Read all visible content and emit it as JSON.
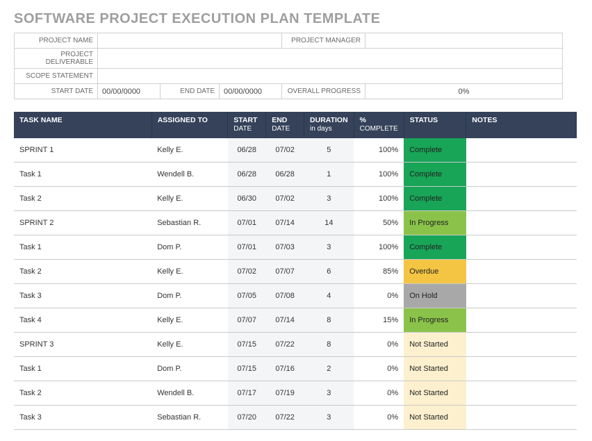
{
  "title": "SOFTWARE PROJECT EXECUTION PLAN TEMPLATE",
  "meta": {
    "project_name_label": "PROJECT NAME",
    "project_name": "",
    "project_manager_label": "PROJECT MANAGER",
    "project_manager": "",
    "deliverable_label": "PROJECT DELIVERABLE",
    "deliverable": "",
    "scope_label": "SCOPE STATEMENT",
    "scope": "",
    "start_date_label": "START DATE",
    "start_date": "00/00/0000",
    "end_date_label": "END DATE",
    "end_date": "00/00/0000",
    "overall_progress_label": "OVERALL PROGRESS",
    "overall_progress": "0%"
  },
  "columns": {
    "task_name": "TASK NAME",
    "assigned": "ASSIGNED TO",
    "start": "START",
    "start_sub": "DATE",
    "end": "END",
    "end_sub": "DATE",
    "duration": "DURATION",
    "duration_sub": "in days",
    "pct": "%",
    "pct_sub": "COMPLETE",
    "status": "STATUS",
    "notes": "NOTES"
  },
  "status_colors": {
    "Complete": "#18a558",
    "In Progress": "#8bc34a",
    "Overdue": "#f4c542",
    "On Hold": "#a8a8a8",
    "Not Started": "#fdf0cf"
  },
  "rows": [
    {
      "task": "SPRINT 1",
      "assigned": "Kelly E.",
      "start": "06/28",
      "end": "07/02",
      "duration": "5",
      "pct": "100%",
      "status": "Complete",
      "notes": ""
    },
    {
      "task": "Task 1",
      "assigned": "Wendell B.",
      "start": "06/28",
      "end": "06/28",
      "duration": "1",
      "pct": "100%",
      "status": "Complete",
      "notes": ""
    },
    {
      "task": "Task 2",
      "assigned": "Kelly E.",
      "start": "06/30",
      "end": "07/02",
      "duration": "3",
      "pct": "100%",
      "status": "Complete",
      "notes": ""
    },
    {
      "task": "SPRINT 2",
      "assigned": "Sebastian R.",
      "start": "07/01",
      "end": "07/14",
      "duration": "14",
      "pct": "50%",
      "status": "In Progress",
      "notes": ""
    },
    {
      "task": "Task 1",
      "assigned": "Dom P.",
      "start": "07/01",
      "end": "07/03",
      "duration": "3",
      "pct": "100%",
      "status": "Complete",
      "notes": ""
    },
    {
      "task": "Task 2",
      "assigned": "Kelly E.",
      "start": "07/02",
      "end": "07/07",
      "duration": "6",
      "pct": "85%",
      "status": "Overdue",
      "notes": ""
    },
    {
      "task": "Task 3",
      "assigned": "Dom P.",
      "start": "07/05",
      "end": "07/08",
      "duration": "4",
      "pct": "0%",
      "status": "On Hold",
      "notes": ""
    },
    {
      "task": "Task 4",
      "assigned": "Kelly E.",
      "start": "07/07",
      "end": "07/14",
      "duration": "8",
      "pct": "15%",
      "status": "In Progress",
      "notes": ""
    },
    {
      "task": "SPRINT 3",
      "assigned": "Kelly E.",
      "start": "07/15",
      "end": "07/22",
      "duration": "8",
      "pct": "0%",
      "status": "Not Started",
      "notes": ""
    },
    {
      "task": "Task 1",
      "assigned": "Dom P.",
      "start": "07/15",
      "end": "07/16",
      "duration": "2",
      "pct": "0%",
      "status": "Not Started",
      "notes": ""
    },
    {
      "task": "Task 2",
      "assigned": "Wendell B.",
      "start": "07/17",
      "end": "07/19",
      "duration": "3",
      "pct": "0%",
      "status": "Not Started",
      "notes": ""
    },
    {
      "task": "Task 3",
      "assigned": "Sebastian R.",
      "start": "07/20",
      "end": "07/22",
      "duration": "3",
      "pct": "0%",
      "status": "Not Started",
      "notes": ""
    }
  ]
}
